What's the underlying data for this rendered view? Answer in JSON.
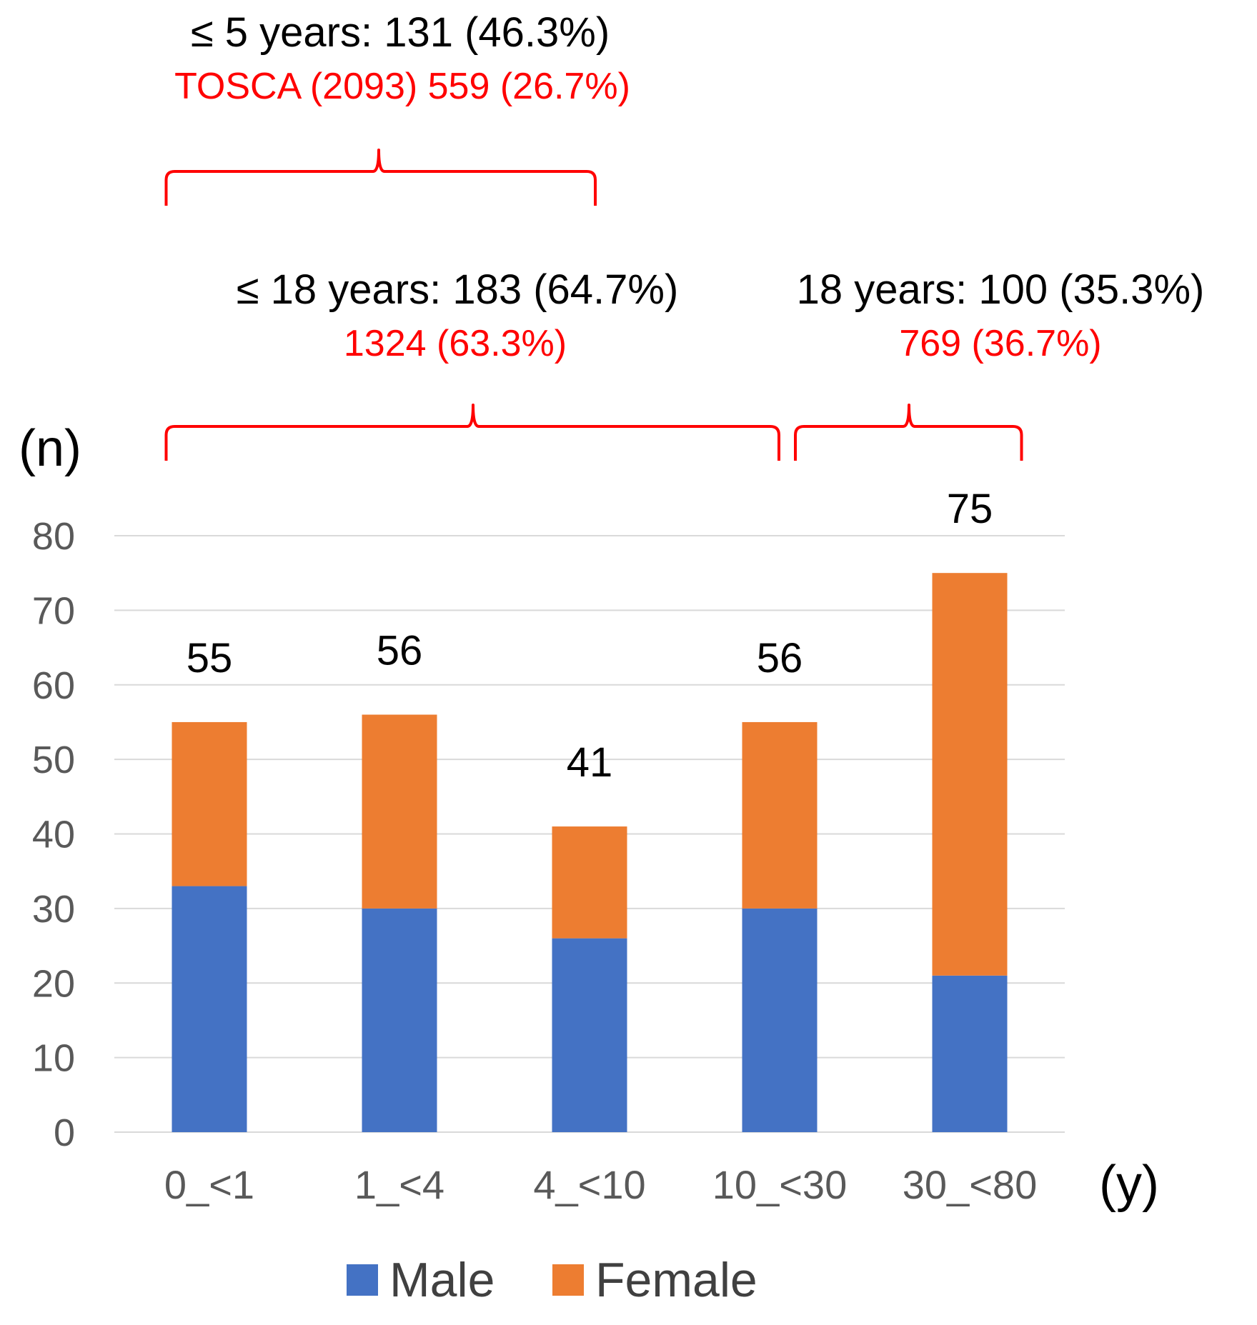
{
  "chart_data": {
    "type": "bar",
    "stacked": true,
    "categories": [
      "0_<1",
      "1_<4",
      "4_<10",
      "10_<30",
      "30_<80"
    ],
    "series": [
      {
        "name": "Male",
        "color": "#4472c4",
        "values": [
          33,
          30,
          26,
          30,
          21
        ]
      },
      {
        "name": "Female",
        "color": "#ed7d31",
        "values": [
          22,
          26,
          15,
          25,
          54
        ]
      }
    ],
    "totals": [
      "55",
      "56",
      "41",
      "56",
      "75"
    ],
    "ylim": [
      0,
      80
    ],
    "yticks": [
      "0",
      "10",
      "20",
      "30",
      "40",
      "50",
      "60",
      "70",
      "80"
    ],
    "ytick_values": [
      0,
      10,
      20,
      30,
      40,
      50,
      60,
      70,
      80
    ],
    "ylabel": "(n)",
    "xlabel": "(y)",
    "grid": true,
    "legend_position": "bottom",
    "annotations": {
      "under5": {
        "label": "≤ 5 years: 131 (46.3%)",
        "tosca": "TOSCA (2093)  559 (26.7%)",
        "from_category": 0,
        "to_category": 2
      },
      "under18": {
        "label": "≤ 18 years: 183 (64.7%)",
        "tosca": "1324 (63.3%)",
        "from_category": 0,
        "to_category": 3
      },
      "over18": {
        "label": "18 years: 100 (35.3%)",
        "tosca": "769 (36.7%)",
        "from_category": 3,
        "to_category": 4
      }
    },
    "legend": [
      {
        "label": "Male",
        "color": "#4472c4"
      },
      {
        "label": "Female",
        "color": "#ed7d31"
      }
    ]
  }
}
